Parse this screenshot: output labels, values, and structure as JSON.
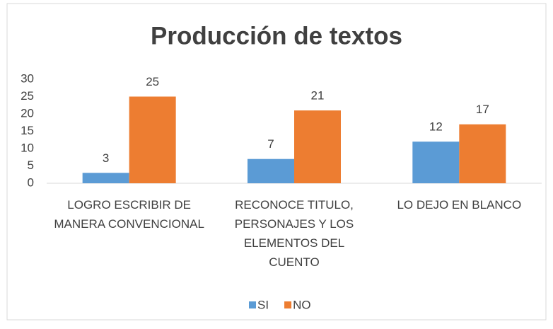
{
  "chart_data": {
    "type": "bar",
    "title": "Producción de textos",
    "categories": [
      "LOGRO ESCRIBIR DE MANERA CONVENCIONAL",
      "RECONOCE TITULO, PERSONAJES Y LOS ELEMENTOS DEL CUENTO",
      "LO DEJO EN BLANCO"
    ],
    "series": [
      {
        "name": "SI",
        "color": "#5b9bd5",
        "values": [
          3,
          7,
          12
        ]
      },
      {
        "name": "NO",
        "color": "#ed7d31",
        "values": [
          25,
          21,
          17
        ]
      }
    ],
    "ylim": [
      0,
      30
    ],
    "yticks": [
      0,
      5,
      10,
      15,
      20,
      25,
      30
    ],
    "grid": false,
    "legend": "bottom"
  }
}
